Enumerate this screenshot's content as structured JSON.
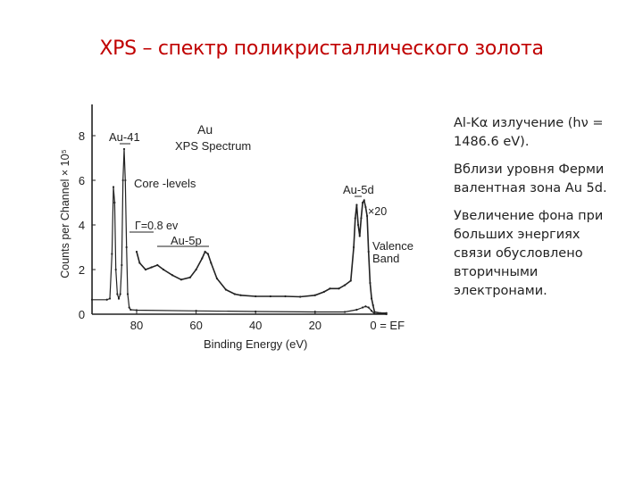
{
  "slide": {
    "title": "XPS – спектр поликристаллического золота",
    "notes": [
      "Al-Kα излучение (hν = 1486.6 eV).",
      "Вблизи уровня Ферми  валентная зона Au 5d.",
      "Увеличение фона при больших энергиях связи обусловлено вторичными электронами."
    ]
  },
  "chart_data": {
    "type": "line",
    "title": "Au XPS Spectrum",
    "title_lines": [
      "Au",
      "XPS Spectrum"
    ],
    "xlabel": "Binding Energy (eV)",
    "ylabel": "Counts per Channel × 10⁵",
    "xlim": [
      95,
      -4
    ],
    "ylim": [
      0,
      9.4
    ],
    "x_reversed": true,
    "grid": false,
    "x_ticks": [
      80,
      60,
      40,
      20,
      0
    ],
    "x_tick_labels": [
      "80",
      "60",
      "40",
      "20",
      "0 = EF"
    ],
    "y_ticks": [
      0,
      2,
      4,
      6,
      8
    ],
    "y_tick_labels": [
      "0",
      "2",
      "4",
      "6",
      "8"
    ],
    "annotations": {
      "au4f": "Au-41",
      "core": "Core -levels",
      "gamma": "Γ=0.8 ev",
      "au5p": "Au-5p",
      "au5d": "Au-5d",
      "x20": "×20",
      "valence": [
        "Valence",
        "Band"
      ]
    },
    "series": [
      {
        "x": [
          95,
          90,
          89,
          88.3,
          87.8,
          87.4,
          87,
          86.5,
          86,
          85.5,
          85,
          84.6,
          84.2,
          83.8,
          83.4,
          83,
          82.5,
          82,
          80,
          60,
          40,
          20,
          10,
          6,
          4,
          3,
          2,
          1,
          0,
          -4
        ],
        "y": [
          0.65,
          0.65,
          0.7,
          2.7,
          5.7,
          5.0,
          2.0,
          0.9,
          0.7,
          0.9,
          2.2,
          6.0,
          7.4,
          6.0,
          3.0,
          0.9,
          0.3,
          0.2,
          0.18,
          0.15,
          0.12,
          0.1,
          0.1,
          0.2,
          0.3,
          0.35,
          0.3,
          0.15,
          0.02,
          0.0
        ]
      },
      {
        "x": [
          80,
          79,
          77,
          75,
          73,
          71,
          68,
          65,
          62,
          60,
          58,
          57,
          56,
          55,
          53,
          50,
          47,
          45,
          40,
          35,
          30,
          25,
          20,
          17,
          15,
          12,
          10,
          8,
          7,
          6.5,
          6,
          5.5,
          5,
          4.5,
          4,
          3.5,
          3,
          2.5,
          2,
          1.5,
          1,
          0.5,
          0,
          -2,
          -4
        ],
        "y": [
          2.8,
          2.3,
          2.0,
          2.1,
          2.2,
          2.0,
          1.75,
          1.55,
          1.65,
          2.0,
          2.5,
          2.8,
          2.7,
          2.3,
          1.6,
          1.1,
          0.9,
          0.85,
          0.8,
          0.8,
          0.8,
          0.78,
          0.85,
          1.0,
          1.15,
          1.15,
          1.3,
          1.5,
          3.0,
          4.3,
          4.9,
          4.0,
          3.5,
          4.3,
          5.0,
          5.1,
          4.8,
          4.4,
          2.8,
          1.4,
          0.7,
          0.4,
          0.1,
          0.05,
          0.05
        ]
      }
    ]
  }
}
